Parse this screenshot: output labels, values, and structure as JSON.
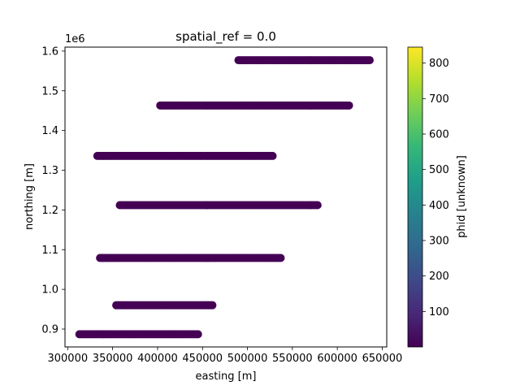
{
  "chart_data": {
    "type": "scatter",
    "title": "spatial_ref = 0.0",
    "xlabel": "easting  [m]",
    "ylabel": "northing  [m]",
    "y_offset_label": "1e6",
    "xlim": [
      297000,
      655000
    ],
    "ylim": [
      855000,
      1610000
    ],
    "xticks": [
      300000,
      350000,
      400000,
      450000,
      500000,
      550000,
      600000,
      650000
    ],
    "xtick_labels": [
      "300000",
      "350000",
      "400000",
      "450000",
      "500000",
      "550000",
      "600000",
      "650000"
    ],
    "yticks": [
      900000,
      1000000,
      1100000,
      1200000,
      1300000,
      1400000,
      1500000,
      1600000
    ],
    "ytick_labels": [
      "0.9",
      "1.0",
      "1.1",
      "1.2",
      "1.3",
      "1.4",
      "1.5",
      "1.6"
    ],
    "grid": false,
    "marker_color": "#440154",
    "series": [
      {
        "x": [
          490000,
          500000,
          510000,
          520000,
          530000,
          540000,
          550000,
          560000,
          570000,
          580000,
          590000,
          600000,
          610000,
          620000,
          636000
        ],
        "y": [
          1577000,
          1577000,
          1577000,
          1577000,
          1577000,
          1577000,
          1577000,
          1577000,
          1577000,
          1577000,
          1577000,
          1577000,
          1577000,
          1577000,
          1577000
        ]
      },
      {
        "x": [
          403000,
          420000,
          440000,
          460000,
          480000,
          500000,
          520000,
          540000,
          560000,
          580000,
          600000,
          613000
        ],
        "y": [
          1463000,
          1463000,
          1463000,
          1463000,
          1463000,
          1463000,
          1463000,
          1463000,
          1463000,
          1463000,
          1463000,
          1463000
        ]
      },
      {
        "x": [
          333000,
          350000,
          370000,
          390000,
          410000,
          430000,
          450000,
          470000,
          490000,
          510000,
          528000
        ],
        "y": [
          1336000,
          1336000,
          1336000,
          1336000,
          1336000,
          1336000,
          1336000,
          1336000,
          1336000,
          1336000,
          1336000
        ]
      },
      {
        "x": [
          358000,
          380000,
          400000,
          420000,
          440000,
          460000,
          480000,
          500000,
          520000,
          540000,
          560000,
          578000
        ],
        "y": [
          1212000,
          1212000,
          1212000,
          1212000,
          1212000,
          1212000,
          1212000,
          1212000,
          1212000,
          1212000,
          1212000,
          1212000
        ]
      },
      {
        "x": [
          336000,
          355000,
          375000,
          395000,
          415000,
          435000,
          455000,
          475000,
          495000,
          515000,
          537000
        ],
        "y": [
          1079000,
          1079000,
          1079000,
          1079000,
          1079000,
          1079000,
          1079000,
          1079000,
          1079000,
          1079000,
          1079000
        ]
      },
      {
        "x": [
          354000,
          370000,
          385000,
          400000,
          415000,
          430000,
          445000,
          461000
        ],
        "y": [
          960000,
          960000,
          960000,
          960000,
          960000,
          960000,
          960000,
          960000
        ]
      },
      {
        "x": [
          313000,
          330000,
          350000,
          370000,
          390000,
          410000,
          425000,
          445000
        ],
        "y": [
          887000,
          887000,
          887000,
          887000,
          887000,
          887000,
          887000,
          887000
        ]
      }
    ],
    "colorbar": {
      "label": "phid  [unknown]",
      "range": [
        0,
        845
      ],
      "ticks": [
        100,
        200,
        300,
        400,
        500,
        600,
        700,
        800
      ],
      "tick_labels": [
        "100",
        "200",
        "300",
        "400",
        "500",
        "600",
        "700",
        "800"
      ],
      "colormap": "viridis",
      "stops": [
        "#440154",
        "#482878",
        "#3e4989",
        "#31688e",
        "#26828e",
        "#1f9e89",
        "#35b779",
        "#6ece58",
        "#b5de2b",
        "#fde725"
      ]
    }
  }
}
